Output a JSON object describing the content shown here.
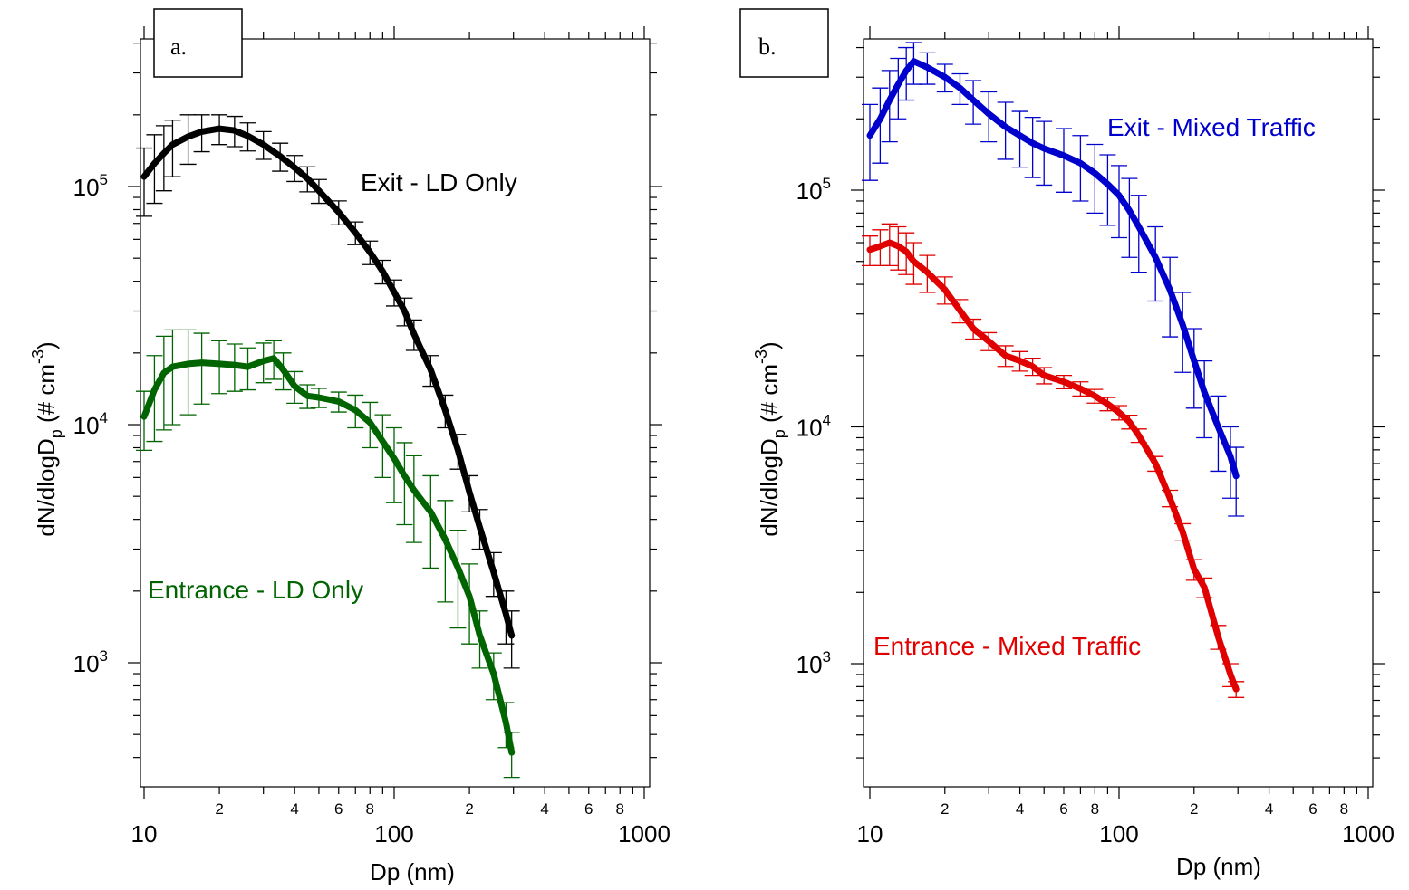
{
  "chart_data": [
    {
      "type": "line",
      "title": "a.",
      "xlabel": "Dp (nm)",
      "ylabel": "dN/dlogD_p (# cm^-3)",
      "xscale": "log",
      "yscale": "log",
      "xlim": [
        10,
        1000
      ],
      "ylim": [
        300,
        500000
      ],
      "x_tick_labels": [
        "10",
        "2",
        "4",
        "6",
        "8",
        "100",
        "2",
        "4",
        "6",
        "8",
        "1000"
      ],
      "y_tick_labels": [
        "10^3",
        "10^4",
        "10^5"
      ],
      "error_bars": true,
      "grid": false,
      "series": [
        {
          "name": "Exit - LD Only",
          "color": "#000000",
          "x": [
            10,
            11,
            12,
            13,
            15,
            17,
            20,
            23,
            26,
            30,
            35,
            40,
            45,
            50,
            60,
            70,
            80,
            90,
            100,
            110,
            120,
            140,
            160,
            180,
            200,
            220,
            250,
            280,
            295
          ],
          "y": [
            110000,
            125000,
            138000,
            150000,
            162000,
            170000,
            175000,
            172000,
            163000,
            150000,
            134000,
            120000,
            108000,
            96000,
            78000,
            64000,
            53000,
            44000,
            36000,
            30000,
            24000,
            17000,
            11500,
            7800,
            5200,
            3700,
            2400,
            1600,
            1300
          ],
          "err": [
            35000,
            40000,
            42000,
            40000,
            38000,
            30000,
            25000,
            25000,
            22000,
            20000,
            18000,
            15000,
            13000,
            11000,
            9000,
            7000,
            6000,
            5000,
            4500,
            4000,
            3500,
            2500,
            1800,
            1300,
            900,
            700,
            500,
            400,
            350
          ]
        },
        {
          "name": "Entrance - LD Only",
          "color": "#006400",
          "x": [
            10,
            11,
            12,
            13,
            15,
            17,
            20,
            23,
            26,
            30,
            33,
            36,
            40,
            45,
            50,
            60,
            70,
            80,
            90,
            100,
            110,
            120,
            140,
            160,
            180,
            200,
            220,
            250,
            280,
            295
          ],
          "y": [
            10800,
            14000,
            16500,
            17500,
            18000,
            18200,
            18000,
            17800,
            17500,
            18500,
            19000,
            17000,
            14500,
            13200,
            13000,
            12500,
            11500,
            10200,
            8500,
            7200,
            6100,
            5300,
            4300,
            3300,
            2500,
            1900,
            1300,
            900,
            560,
            420
          ],
          "err": [
            3000,
            5500,
            7000,
            7500,
            7000,
            6000,
            4500,
            4000,
            3500,
            3500,
            3500,
            3000,
            2200,
            1500,
            1200,
            1200,
            1800,
            2200,
            2500,
            2500,
            2300,
            2100,
            1800,
            1500,
            1100,
            700,
            350,
            200,
            120,
            90
          ]
        }
      ]
    },
    {
      "type": "line",
      "title": "b.",
      "xlabel": "Dp (nm)",
      "ylabel": "dN/dlogD_p (# cm^-3)",
      "xscale": "log",
      "yscale": "log",
      "xlim": [
        10,
        1000
      ],
      "ylim": [
        300,
        500000
      ],
      "x_tick_labels": [
        "10",
        "2",
        "4",
        "6",
        "8",
        "100",
        "2",
        "4",
        "6",
        "8",
        "1000"
      ],
      "y_tick_labels": [
        "10^3",
        "10^4",
        "10^5"
      ],
      "error_bars": true,
      "grid": false,
      "series": [
        {
          "name": "Exit - Mixed Traffic",
          "color": "#0000cc",
          "x": [
            10,
            11,
            12,
            13,
            14,
            15,
            17,
            20,
            23,
            26,
            30,
            35,
            40,
            45,
            50,
            60,
            70,
            80,
            90,
            100,
            110,
            120,
            140,
            160,
            180,
            200,
            220,
            250,
            280,
            295
          ],
          "y": [
            170000,
            200000,
            240000,
            280000,
            320000,
            350000,
            330000,
            300000,
            270000,
            240000,
            210000,
            185000,
            170000,
            158000,
            150000,
            140000,
            130000,
            118000,
            106000,
            95000,
            82000,
            70000,
            52000,
            38000,
            27000,
            19000,
            14000,
            10000,
            7500,
            6200
          ],
          "err": [
            60000,
            70000,
            80000,
            80000,
            80000,
            70000,
            50000,
            40000,
            40000,
            50000,
            50000,
            50000,
            45000,
            45000,
            45000,
            42000,
            40000,
            38000,
            35000,
            32000,
            30000,
            25000,
            18000,
            14000,
            10000,
            7000,
            5000,
            3500,
            2500,
            2000
          ]
        },
        {
          "name": "Entrance - Mixed Traffic",
          "color": "#e00000",
          "x": [
            10,
            11,
            12,
            13,
            14,
            15,
            17,
            20,
            23,
            26,
            30,
            35,
            40,
            45,
            50,
            60,
            70,
            80,
            90,
            100,
            110,
            120,
            140,
            160,
            180,
            200,
            220,
            250,
            280,
            295
          ],
          "y": [
            56000,
            58000,
            60000,
            58000,
            55000,
            50000,
            45000,
            38000,
            31000,
            26000,
            23000,
            20000,
            19000,
            18000,
            16500,
            15500,
            14500,
            13500,
            12500,
            11500,
            10500,
            9200,
            7000,
            5000,
            3600,
            2500,
            2100,
            1300,
            900,
            780
          ],
          "err": [
            8000,
            10000,
            12000,
            12000,
            11000,
            10000,
            8000,
            5000,
            3500,
            2500,
            2000,
            2000,
            1800,
            1500,
            1300,
            1000,
            1000,
            900,
            800,
            800,
            700,
            600,
            500,
            400,
            300,
            250,
            200,
            150,
            100,
            60
          ]
        }
      ]
    }
  ]
}
